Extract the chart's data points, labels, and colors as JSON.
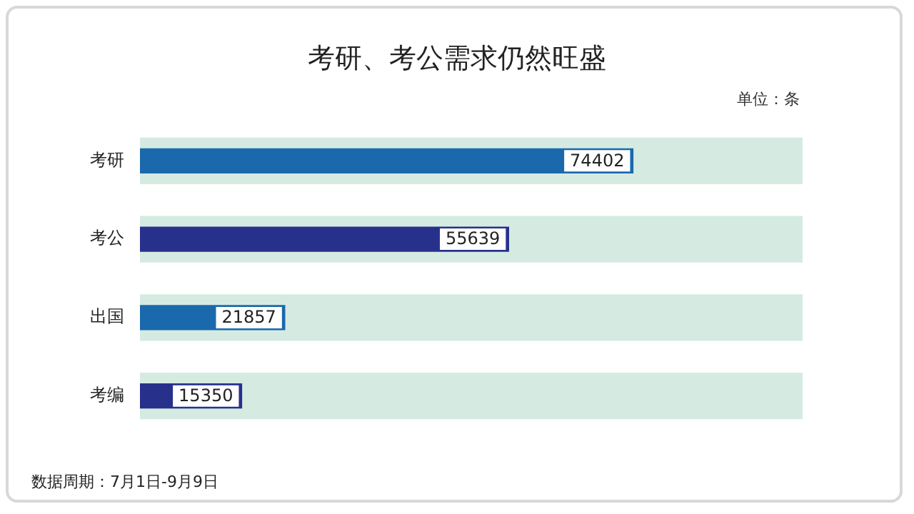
{
  "chart_data": {
    "type": "bar",
    "orientation": "horizontal",
    "title": "考研、考公需求仍然旺盛",
    "categories": [
      "考研",
      "考公",
      "出国",
      "考编"
    ],
    "series": [
      {
        "colors": [
          "#1a69ad",
          "#27318c",
          "#1a69ad",
          "#27318c"
        ],
        "values": [
          74402,
          55639,
          21857,
          15350
        ],
        "data_labels": true
      },
      {
        "color": "#d5ebe2",
        "values": [
          100000,
          100000,
          100000,
          100000
        ]
      }
    ],
    "xlim": [
      0,
      100000
    ],
    "tick_labels": "y",
    "legend": false,
    "annotations": [
      "单位：条",
      "数据周期：7月1日-9月9日"
    ]
  }
}
